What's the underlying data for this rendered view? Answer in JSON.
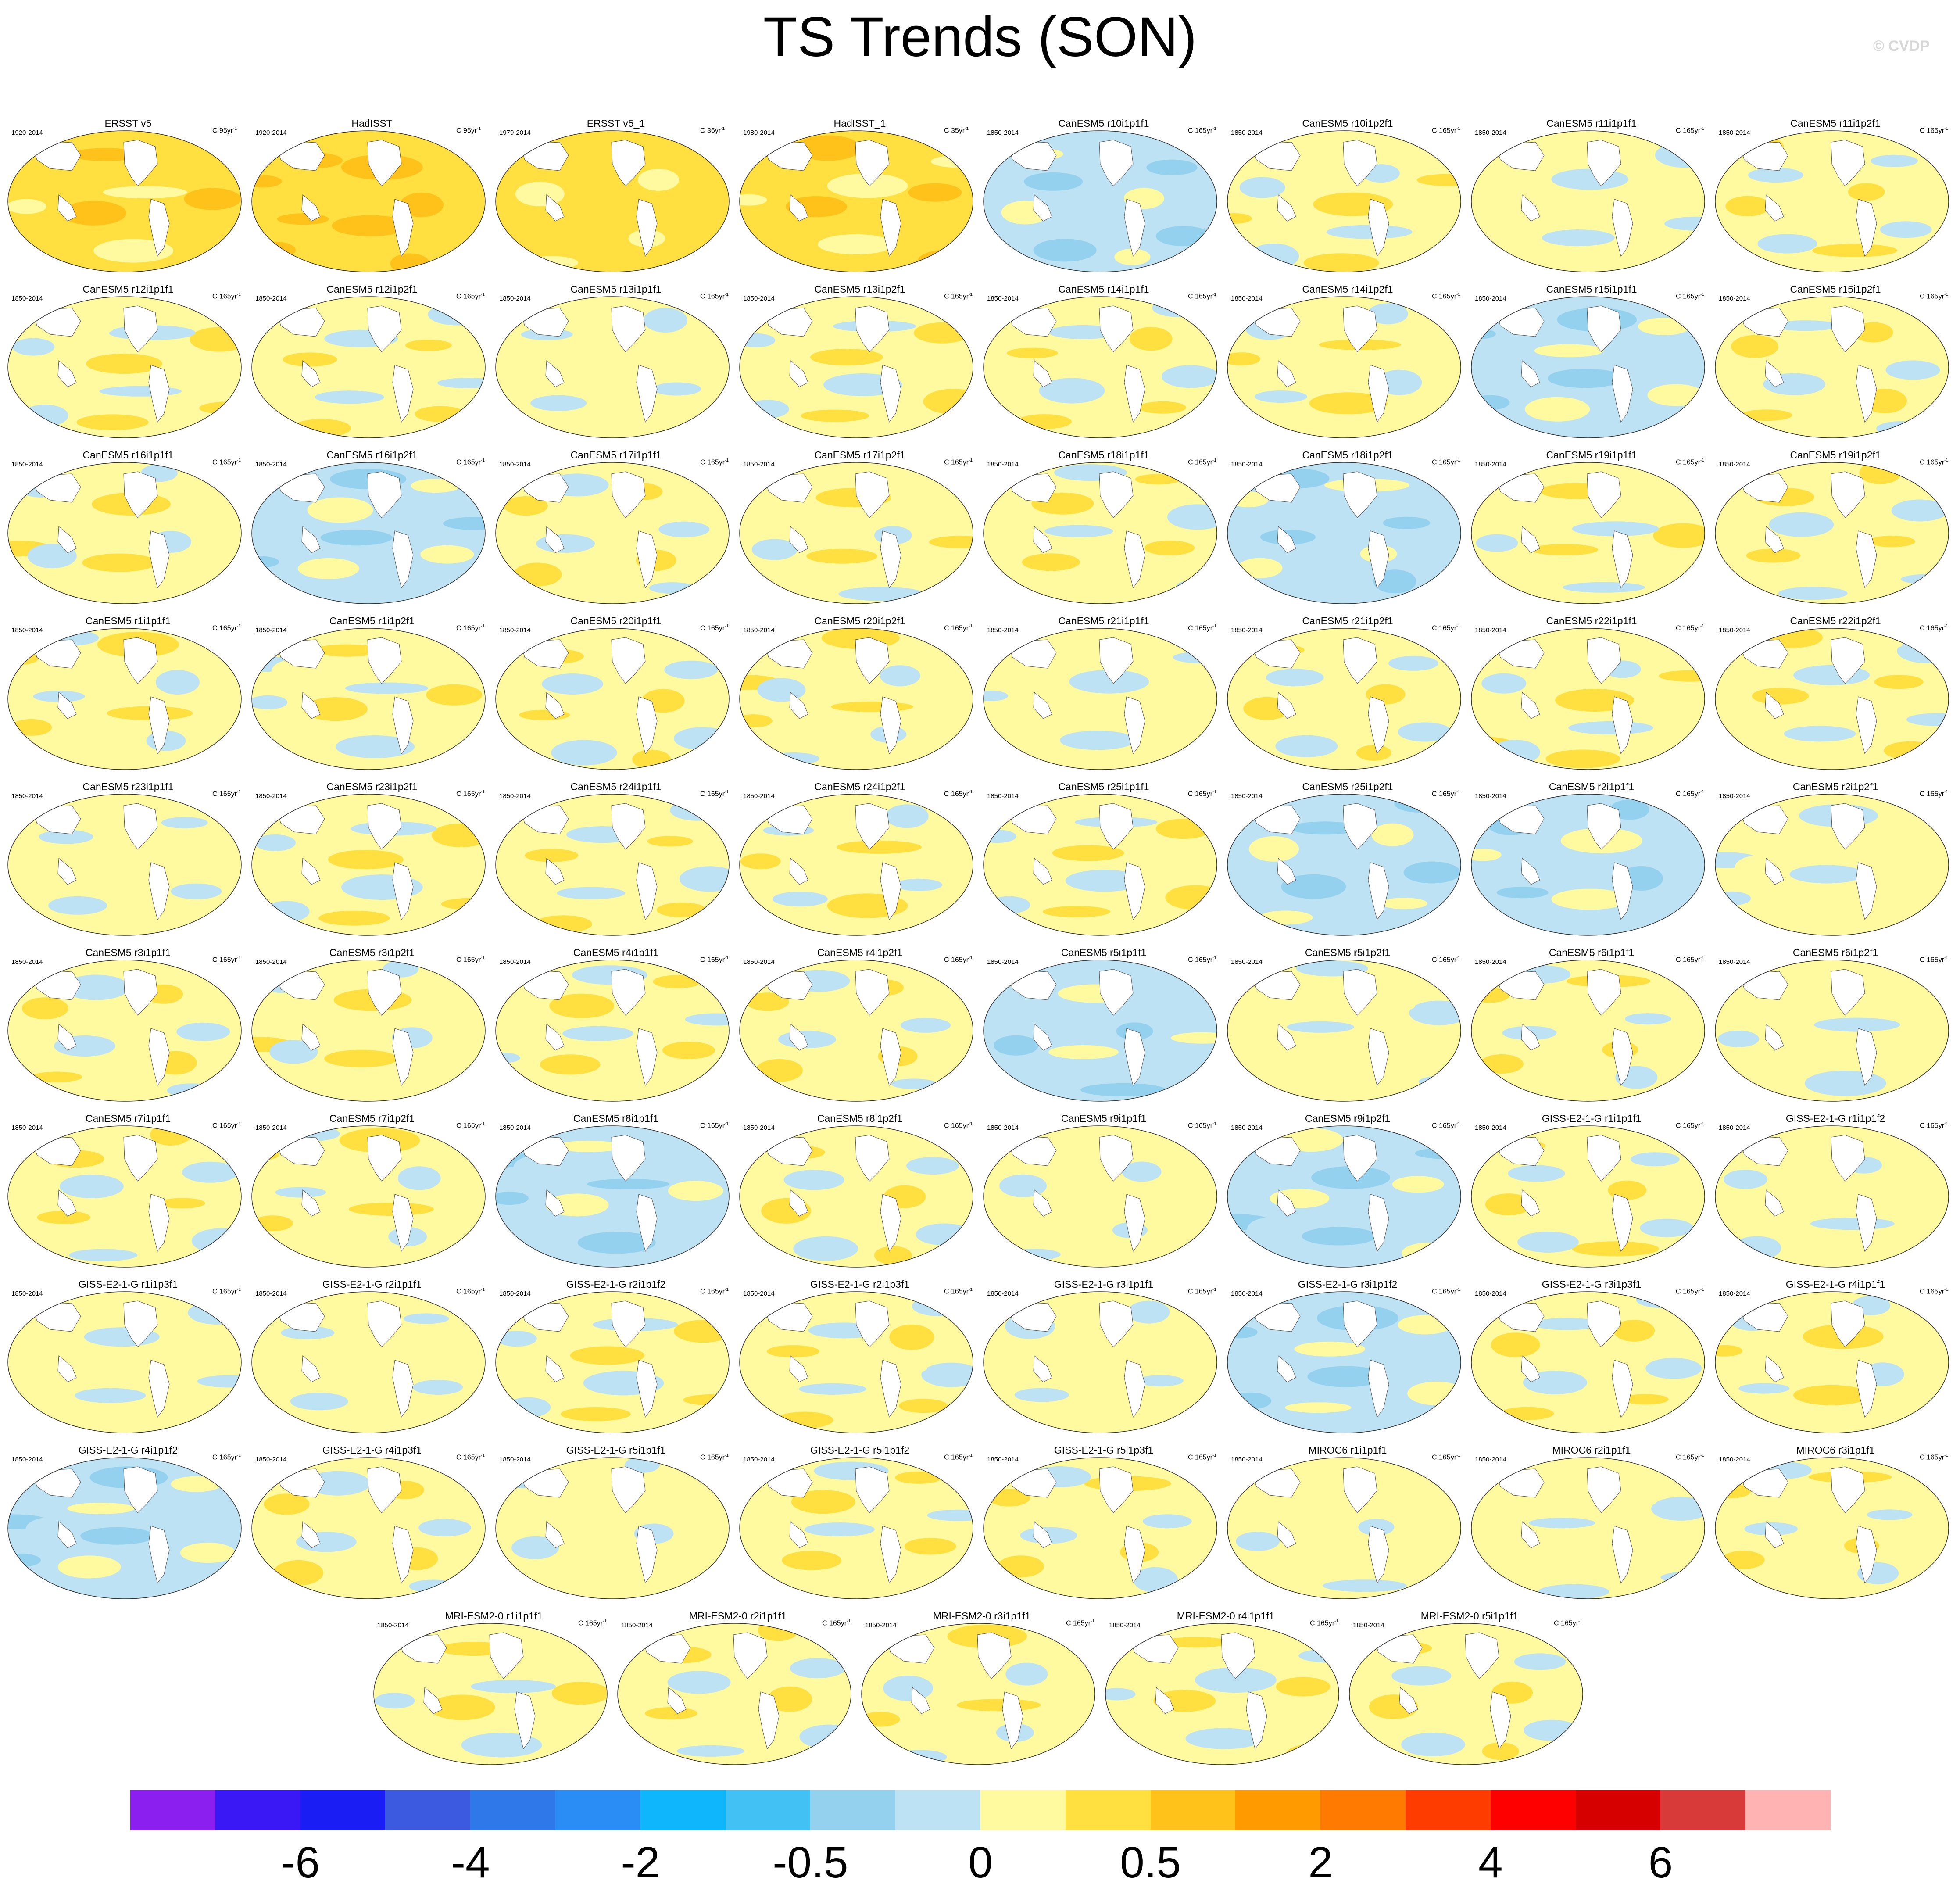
{
  "title": "TS Trends (SON)",
  "watermark": "© CVDP",
  "panels": [
    {
      "name": "ERSST v5",
      "period": "1920-2014",
      "units": "C 95yr",
      "sign": 0.9
    },
    {
      "name": "HadISST",
      "period": "1920-2014",
      "units": "C 95yr",
      "sign": 1.0
    },
    {
      "name": "ERSST v5_1",
      "period": "1979-2014",
      "units": "C 36yr",
      "sign": 0.5
    },
    {
      "name": "HadISST_1",
      "period": "1980-2014",
      "units": "C 35yr",
      "sign": 0.8
    },
    {
      "name": "CanESM5 r10i1p1f1",
      "period": "1850-2014",
      "units": "C 165yr",
      "sign": -0.2
    },
    {
      "name": "CanESM5 r10i1p2f1",
      "period": "1850-2014",
      "units": "C 165yr",
      "sign": 0.1
    },
    {
      "name": "CanESM5 r11i1p1f1",
      "period": "1850-2014",
      "units": "C 165yr",
      "sign": 0.0
    },
    {
      "name": "CanESM5 r11i1p2f1",
      "period": "1850-2014",
      "units": "C 165yr",
      "sign": 0.2
    },
    {
      "name": "CanESM5 r12i1p1f1",
      "period": "1850-2014",
      "units": "C 165yr",
      "sign": 0.1
    },
    {
      "name": "CanESM5 r12i1p2f1",
      "period": "1850-2014",
      "units": "C 165yr",
      "sign": 0.3
    },
    {
      "name": "CanESM5 r13i1p1f1",
      "period": "1850-2014",
      "units": "C 165yr",
      "sign": 0.0
    },
    {
      "name": "CanESM5 r13i1p2f1",
      "period": "1850-2014",
      "units": "C 165yr",
      "sign": 0.3
    },
    {
      "name": "CanESM5 r14i1p1f1",
      "period": "1850-2014",
      "units": "C 165yr",
      "sign": 0.2
    },
    {
      "name": "CanESM5 r14i1p2f1",
      "period": "1850-2014",
      "units": "C 165yr",
      "sign": 0.1
    },
    {
      "name": "CanESM5 r15i1p1f1",
      "period": "1850-2014",
      "units": "C 165yr",
      "sign": -0.1
    },
    {
      "name": "CanESM5 r15i1p2f1",
      "period": "1850-2014",
      "units": "C 165yr",
      "sign": 0.3
    },
    {
      "name": "CanESM5 r16i1p1f1",
      "period": "1850-2014",
      "units": "C 165yr",
      "sign": 0.1
    },
    {
      "name": "CanESM5 r16i1p2f1",
      "period": "1850-2014",
      "units": "C 165yr",
      "sign": -0.2
    },
    {
      "name": "CanESM5 r17i1p1f1",
      "period": "1850-2014",
      "units": "C 165yr",
      "sign": 0.2
    },
    {
      "name": "CanESM5 r17i1p2f1",
      "period": "1850-2014",
      "units": "C 165yr",
      "sign": 0.3
    },
    {
      "name": "CanESM5 r18i1p1f1",
      "period": "1850-2014",
      "units": "C 165yr",
      "sign": 0.3
    },
    {
      "name": "CanESM5 r18i1p2f1",
      "period": "1850-2014",
      "units": "C 165yr",
      "sign": -0.1
    },
    {
      "name": "CanESM5 r19i1p1f1",
      "period": "1850-2014",
      "units": "C 165yr",
      "sign": 0.2
    },
    {
      "name": "CanESM5 r19i1p2f1",
      "period": "1850-2014",
      "units": "C 165yr",
      "sign": 0.3
    },
    {
      "name": "CanESM5 r1i1p1f1",
      "period": "1850-2014",
      "units": "C 165yr",
      "sign": 0.2
    },
    {
      "name": "CanESM5 r1i1p2f1",
      "period": "1850-2014",
      "units": "C 165yr",
      "sign": 0.3
    },
    {
      "name": "CanESM5 r20i1p1f1",
      "period": "1850-2014",
      "units": "C 165yr",
      "sign": 0.1
    },
    {
      "name": "CanESM5 r20i1p2f1",
      "period": "1850-2014",
      "units": "C 165yr",
      "sign": 0.1
    },
    {
      "name": "CanESM5 r21i1p1f1",
      "period": "1850-2014",
      "units": "C 165yr",
      "sign": 0.0
    },
    {
      "name": "CanESM5 r21i1p2f1",
      "period": "1850-2014",
      "units": "C 165yr",
      "sign": 0.4
    },
    {
      "name": "CanESM5 r22i1p1f1",
      "period": "1850-2014",
      "units": "C 165yr",
      "sign": 0.3
    },
    {
      "name": "CanESM5 r22i1p2f1",
      "period": "1850-2014",
      "units": "C 165yr",
      "sign": 0.3
    },
    {
      "name": "CanESM5 r23i1p1f1",
      "period": "1850-2014",
      "units": "C 165yr",
      "sign": 0.0
    },
    {
      "name": "CanESM5 r23i1p2f1",
      "period": "1850-2014",
      "units": "C 165yr",
      "sign": 0.4
    },
    {
      "name": "CanESM5 r24i1p1f1",
      "period": "1850-2014",
      "units": "C 165yr",
      "sign": 0.2
    },
    {
      "name": "CanESM5 r24i1p2f1",
      "period": "1850-2014",
      "units": "C 165yr",
      "sign": 0.2
    },
    {
      "name": "CanESM5 r25i1p1f1",
      "period": "1850-2014",
      "units": "C 165yr",
      "sign": 0.3
    },
    {
      "name": "CanESM5 r25i1p2f1",
      "period": "1850-2014",
      "units": "C 165yr",
      "sign": -0.1
    },
    {
      "name": "CanESM5 r2i1p1f1",
      "period": "1850-2014",
      "units": "C 165yr",
      "sign": -0.1
    },
    {
      "name": "CanESM5 r2i1p2f1",
      "period": "1850-2014",
      "units": "C 165yr",
      "sign": 0.0
    },
    {
      "name": "CanESM5 r3i1p1f1",
      "period": "1850-2014",
      "units": "C 165yr",
      "sign": 0.1
    },
    {
      "name": "CanESM5 r3i1p2f1",
      "period": "1850-2014",
      "units": "C 165yr",
      "sign": 0.1
    },
    {
      "name": "CanESM5 r4i1p1f1",
      "period": "1850-2014",
      "units": "C 165yr",
      "sign": 0.2
    },
    {
      "name": "CanESM5 r4i1p2f1",
      "period": "1850-2014",
      "units": "C 165yr",
      "sign": 0.3
    },
    {
      "name": "CanESM5 r5i1p1f1",
      "period": "1850-2014",
      "units": "C 165yr",
      "sign": -0.1
    },
    {
      "name": "CanESM5 r5i1p2f1",
      "period": "1850-2014",
      "units": "C 165yr",
      "sign": 0.0
    },
    {
      "name": "CanESM5 r6i1p1f1",
      "period": "1850-2014",
      "units": "C 165yr",
      "sign": 0.3
    },
    {
      "name": "CanESM5 r6i1p2f1",
      "period": "1850-2014",
      "units": "C 165yr",
      "sign": 0.0
    },
    {
      "name": "CanESM5 r7i1p1f1",
      "period": "1850-2014",
      "units": "C 165yr",
      "sign": 0.4
    },
    {
      "name": "CanESM5 r7i1p2f1",
      "period": "1850-2014",
      "units": "C 165yr",
      "sign": 0.3
    },
    {
      "name": "CanESM5 r8i1p1f1",
      "period": "1850-2014",
      "units": "C 165yr",
      "sign": -0.1
    },
    {
      "name": "CanESM5 r8i1p2f1",
      "period": "1850-2014",
      "units": "C 165yr",
      "sign": 0.1
    },
    {
      "name": "CanESM5 r9i1p1f1",
      "period": "1850-2014",
      "units": "C 165yr",
      "sign": 0.0
    },
    {
      "name": "CanESM5 r9i1p2f1",
      "period": "1850-2014",
      "units": "C 165yr",
      "sign": -0.1
    },
    {
      "name": "GISS-E2-1-G r1i1p1f1",
      "period": "1850-2014",
      "units": "C 165yr",
      "sign": 0.3
    },
    {
      "name": "GISS-E2-1-G r1i1p1f2",
      "period": "1850-2014",
      "units": "C 165yr",
      "sign": 0.0
    },
    {
      "name": "GISS-E2-1-G r1i1p3f1",
      "period": "1850-2014",
      "units": "C 165yr",
      "sign": 0.0
    },
    {
      "name": "GISS-E2-1-G r2i1p1f1",
      "period": "1850-2014",
      "units": "C 165yr",
      "sign": 0.0
    },
    {
      "name": "GISS-E2-1-G r2i1p1f2",
      "period": "1850-2014",
      "units": "C 165yr",
      "sign": 0.3
    },
    {
      "name": "GISS-E2-1-G r2i1p3f1",
      "period": "1850-2014",
      "units": "C 165yr",
      "sign": 0.1
    },
    {
      "name": "GISS-E2-1-G r3i1p1f1",
      "period": "1850-2014",
      "units": "C 165yr",
      "sign": 0.0
    },
    {
      "name": "GISS-E2-1-G r3i1p1f2",
      "period": "1850-2014",
      "units": "C 165yr",
      "sign": -0.1
    },
    {
      "name": "GISS-E2-1-G r3i1p3f1",
      "period": "1850-2014",
      "units": "C 165yr",
      "sign": 0.2
    },
    {
      "name": "GISS-E2-1-G r4i1p1f1",
      "period": "1850-2014",
      "units": "C 165yr",
      "sign": 0.3
    },
    {
      "name": "GISS-E2-1-G r4i1p1f2",
      "period": "1850-2014",
      "units": "C 165yr",
      "sign": -0.1
    },
    {
      "name": "GISS-E2-1-G r4i1p3f1",
      "period": "1850-2014",
      "units": "C 165yr",
      "sign": 0.1
    },
    {
      "name": "GISS-E2-1-G r5i1p1f1",
      "period": "1850-2014",
      "units": "C 165yr",
      "sign": 0.0
    },
    {
      "name": "GISS-E2-1-G r5i1p1f2",
      "period": "1850-2014",
      "units": "C 165yr",
      "sign": 0.1
    },
    {
      "name": "GISS-E2-1-G r5i1p3f1",
      "period": "1850-2014",
      "units": "C 165yr",
      "sign": 0.1
    },
    {
      "name": "MIROC6 r1i1p1f1",
      "period": "1850-2014",
      "units": "C 165yr",
      "sign": 0.0
    },
    {
      "name": "MIROC6 r2i1p1f1",
      "period": "1850-2014",
      "units": "C 165yr",
      "sign": 0.0
    },
    {
      "name": "MIROC6 r3i1p1f1",
      "period": "1850-2014",
      "units": "C 165yr",
      "sign": 0.1
    },
    {
      "name": "MRI-ESM2-0 r1i1p1f1",
      "period": "1850-2014",
      "units": "C 165yr",
      "sign": 0.2
    },
    {
      "name": "MRI-ESM2-0 r2i1p1f1",
      "period": "1850-2014",
      "units": "C 165yr",
      "sign": 0.1
    },
    {
      "name": "MRI-ESM2-0 r3i1p1f1",
      "period": "1850-2014",
      "units": "C 165yr",
      "sign": 0.1
    },
    {
      "name": "MRI-ESM2-0 r4i1p1f1",
      "period": "1850-2014",
      "units": "C 165yr",
      "sign": 0.2
    },
    {
      "name": "MRI-ESM2-0 r5i1p1f1",
      "period": "1850-2014",
      "units": "C 165yr",
      "sign": 0.1
    }
  ],
  "colorbar": {
    "colors": [
      "#8a1ff0",
      "#3a17f5",
      "#1a1ef5",
      "#3b5ae0",
      "#2f78ea",
      "#2a8df5",
      "#10b6fb",
      "#41c1f4",
      "#94d1ef",
      "#bde2f4",
      "#fff9a0",
      "#ffe040",
      "#ffc21a",
      "#ff9a00",
      "#ff7a00",
      "#ff3c00",
      "#ff0000",
      "#d60000",
      "#d83a3a",
      "#ffb3b3"
    ],
    "labels": [
      {
        "text": "-6",
        "boundary": 2
      },
      {
        "text": "-4",
        "boundary": 4
      },
      {
        "text": "-2",
        "boundary": 6
      },
      {
        "text": "-0.5",
        "boundary": 8
      },
      {
        "text": "0",
        "boundary": 10
      },
      {
        "text": "0.5",
        "boundary": 12
      },
      {
        "text": "2",
        "boundary": 14
      },
      {
        "text": "4",
        "boundary": 16
      },
      {
        "text": "6",
        "boundary": 18
      }
    ]
  }
}
